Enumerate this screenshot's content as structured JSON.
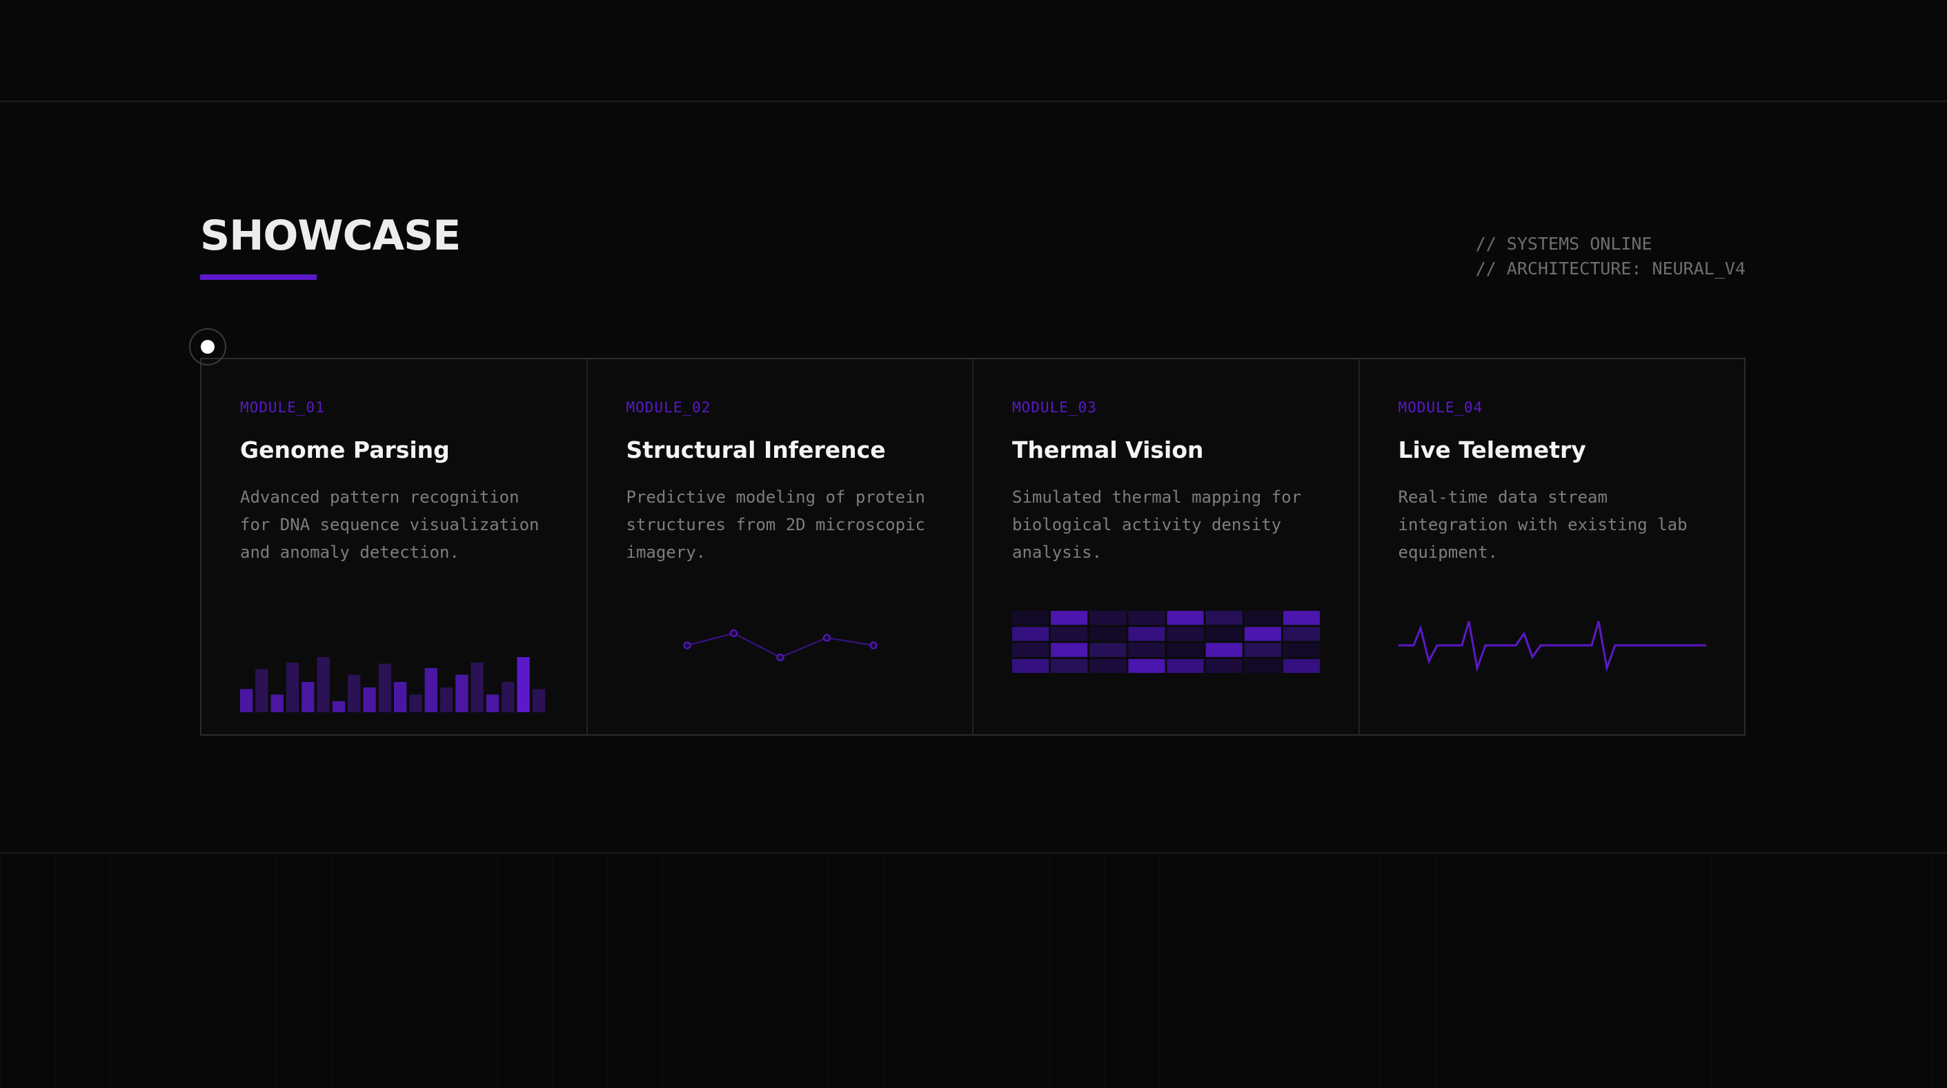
{
  "header": {
    "title": "SHOWCASE",
    "status_lines": [
      "// SYSTEMS ONLINE",
      "// ARCHITECTURE: NEURAL_V4"
    ]
  },
  "colors": {
    "accent": "#5b19c9",
    "background": "#080808",
    "title": "#ececec",
    "muted_text": "#7d7d7d"
  },
  "modules": [
    {
      "label": "MODULE_01",
      "title": "Genome Parsing",
      "description": "Advanced pattern recognition for DNA sequence visualization and anomaly detection.",
      "visual": "bar-sequence",
      "bars": [
        0.42,
        0.78,
        0.32,
        0.9,
        0.55,
        1.0,
        0.2,
        0.68,
        0.45,
        0.88,
        0.55,
        0.32,
        0.8,
        0.45,
        0.68,
        0.9,
        0.32,
        0.55,
        1.0,
        0.42
      ],
      "bar_shades": [
        "mid",
        "dim",
        "mid",
        "dim",
        "mid",
        "dim",
        "mid",
        "dim",
        "mid",
        "dim",
        "mid",
        "dim",
        "mid",
        "dim",
        "mid",
        "dim",
        "mid",
        "dim",
        "bright",
        "dim"
      ]
    },
    {
      "label": "MODULE_02",
      "title": "Structural Inference",
      "description": "Predictive modeling of protein structures from 2D microscopic imagery.",
      "visual": "node-graph",
      "nodes": [
        0.0,
        0.35,
        -0.35,
        0.22,
        0.0
      ]
    },
    {
      "label": "MODULE_03",
      "title": "Thermal Vision",
      "description": "Simulated thermal mapping for biological activity density analysis.",
      "visual": "heatmap-grid",
      "grid": [
        [
          0.1,
          0.8,
          0.3,
          0.2,
          0.9,
          0.4,
          0.1,
          0.9
        ],
        [
          0.6,
          0.3,
          0.1,
          0.7,
          0.3,
          0.1,
          0.85,
          0.4
        ],
        [
          0.2,
          0.9,
          0.5,
          0.3,
          0.1,
          0.8,
          0.4,
          0.15
        ],
        [
          0.7,
          0.4,
          0.2,
          0.85,
          0.6,
          0.3,
          0.1,
          0.75
        ]
      ]
    },
    {
      "label": "MODULE_04",
      "title": "Live Telemetry",
      "description": "Real-time data stream integration with existing lab equipment.",
      "visual": "pulse-line"
    }
  ]
}
